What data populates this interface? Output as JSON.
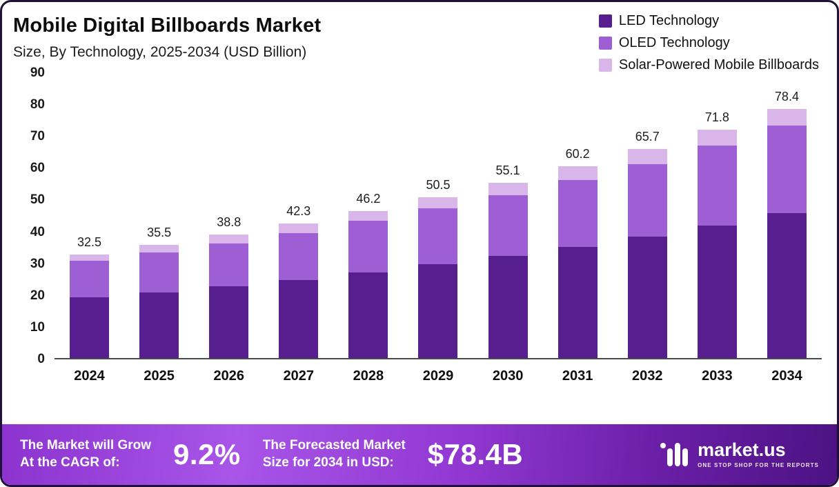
{
  "header": {
    "title": "Mobile Digital Billboards Market",
    "subtitle": "Size, By Technology, 2025-2034 (USD Billion)"
  },
  "chart_data": {
    "type": "bar",
    "stacked": true,
    "title": "Mobile Digital Billboards Market",
    "subtitle": "Size, By Technology, 2025-2034 (USD Billion)",
    "categories": [
      "2024",
      "2025",
      "2026",
      "2027",
      "2028",
      "2029",
      "2030",
      "2031",
      "2032",
      "2033",
      "2034"
    ],
    "totals": [
      32.5,
      35.5,
      38.8,
      42.3,
      46.2,
      50.5,
      55.1,
      60.2,
      65.7,
      71.8,
      78.4
    ],
    "series": [
      {
        "name": "LED Technology",
        "color": "#561e8f",
        "values": [
          19.0,
          20.6,
          22.5,
          24.5,
          27.0,
          29.4,
          32.0,
          34.9,
          38.1,
          41.7,
          45.6
        ]
      },
      {
        "name": "OLED Technology",
        "color": "#9e5fd5",
        "values": [
          11.5,
          12.5,
          13.6,
          14.8,
          16.1,
          17.6,
          19.2,
          21.0,
          22.9,
          25.1,
          27.4
        ]
      },
      {
        "name": "Solar-Powered Mobile Billboards",
        "color": "#d9b6ea",
        "values": [
          2.0,
          2.4,
          2.7,
          3.0,
          3.1,
          3.5,
          3.9,
          4.3,
          4.7,
          5.0,
          5.4
        ]
      }
    ],
    "ylabel": "",
    "xlabel": "",
    "ylim": [
      0,
      90
    ],
    "yticks": [
      0,
      10,
      20,
      30,
      40,
      50,
      60,
      70,
      80,
      90
    ],
    "grid": false,
    "legend_position": "top-right"
  },
  "footer": {
    "cagr_label": "The Market will Grow\nAt the CAGR of:",
    "cagr_value": "9.2%",
    "forecast_label": "The Forecasted Market\nSize for 2034 in USD:",
    "forecast_value": "$78.4B",
    "brand": "market.us",
    "tagline": "ONE STOP SHOP FOR THE REPORTS"
  }
}
